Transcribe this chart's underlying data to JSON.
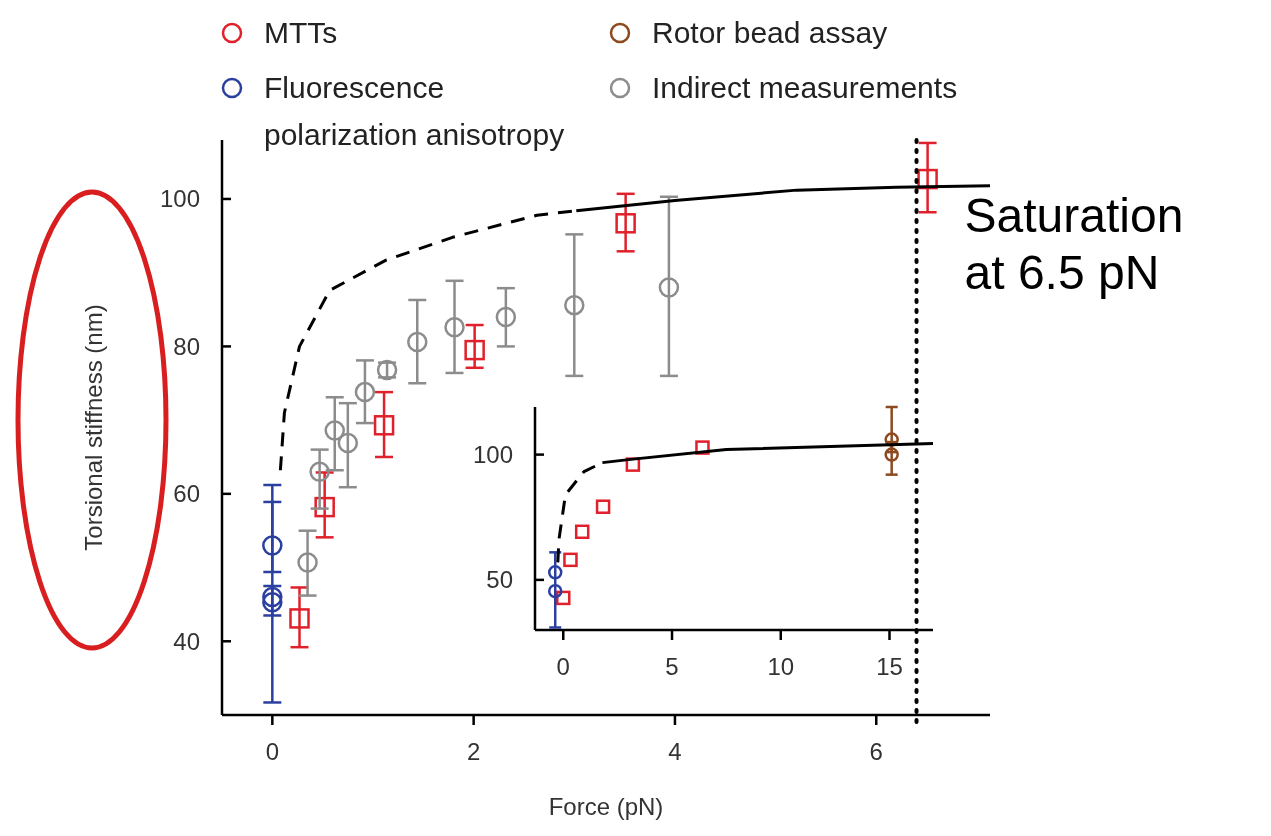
{
  "chart_data": [
    {
      "type": "scatter",
      "xlabel": "Force (pN)",
      "ylabel": "Torsional stiffness (nm)",
      "legend": "top",
      "xlim": [
        -0.5,
        7.13
      ],
      "ylim": [
        30,
        108
      ],
      "xticks": [
        0,
        2,
        4,
        6
      ],
      "yticks": [
        40,
        60,
        80,
        100
      ],
      "series": [
        {
          "name": "MTTs",
          "color": "#e0202a",
          "marker": "square",
          "x": [
            0.27,
            0.52,
            1.11,
            2.01,
            3.51,
            6.51
          ],
          "values": [
            43.1,
            58.2,
            69.3,
            79.5,
            96.7,
            102.7
          ],
          "errors": [
            [
              39.2,
              47.3
            ],
            [
              54.1,
              62.9
            ],
            [
              65.0,
              73.8
            ],
            [
              77.1,
              82.9
            ],
            [
              92.9,
              100.7
            ],
            [
              98.2,
              107.6
            ]
          ]
        },
        {
          "name": "Fluorescence polarization anisotropy",
          "color": "#2a3fa0",
          "marker": "circle",
          "x": [
            0,
            0,
            0
          ],
          "values": [
            53.0,
            46.0,
            45.3
          ],
          "errors": [
            [
              49.4,
              58.9
            ],
            [
              31.7,
              61.2
            ],
            [
              43.5,
              47.5
            ]
          ]
        },
        {
          "name": "Rotor bead assay",
          "color": "#8c4a1e"
        },
        {
          "name": "Indirect measurements",
          "color": "#8c8c8c",
          "marker": "circle",
          "x": [
            0.35,
            0.47,
            0.62,
            0.75,
            0.92,
            1.14,
            1.44,
            1.81,
            2.32,
            3.0,
            3.94
          ],
          "values": [
            50.7,
            63.0,
            68.6,
            66.9,
            73.8,
            76.8,
            80.6,
            82.6,
            84.0,
            85.6,
            88.0
          ],
          "errors": [
            [
              46.2,
              55.0
            ],
            [
              58.0,
              66.0
            ],
            [
              63.2,
              73.1
            ],
            [
              60.9,
              72.3
            ],
            [
              69.6,
              78.1
            ],
            [
              75.8,
              77.8
            ],
            [
              75.0,
              86.3
            ],
            [
              76.4,
              88.9
            ],
            [
              80.0,
              87.9
            ],
            [
              76.0,
              95.2
            ],
            [
              76.0,
              100.3
            ]
          ]
        },
        {
          "type": "line",
          "color": "#000000",
          "marker": "none",
          "line_style": "dashed",
          "x": [
            0.08,
            0.12,
            0.27,
            0.57,
            1.13,
            1.79,
            2.63,
            3.02
          ],
          "values": [
            63.2,
            71.0,
            80.0,
            87.6,
            91.7,
            94.8,
            97.8,
            98.4
          ]
        },
        {
          "type": "line",
          "color": "#000000",
          "marker": "none",
          "line_style": "solid",
          "x": [
            3.02,
            4.0,
            5.21,
            6.2,
            7.13
          ],
          "values": [
            98.4,
            99.8,
            101.2,
            101.6,
            101.8
          ]
        }
      ],
      "ref_lines": [
        {
          "axis": "x",
          "value": 6.4,
          "label": "Saturation at 6.5 pN",
          "color": "#000000",
          "line_style": "dotted"
        }
      ]
    },
    {
      "type": "scatter",
      "xlim": [
        -1.3,
        17
      ],
      "ylim": [
        30,
        119
      ],
      "xticks": [
        0,
        5,
        10,
        15
      ],
      "yticks": [
        50,
        100
      ],
      "series": [
        {
          "color": "#e0202a",
          "marker": "square",
          "x": [
            0,
            0.33,
            0.87,
            1.83,
            3.2,
            6.4
          ],
          "values": [
            42.8,
            58.0,
            69.2,
            79.2,
            96.0,
            102.8
          ]
        },
        {
          "color": "#2a3fa0",
          "marker": "circle",
          "x": [
            -0.37,
            -0.37
          ],
          "values": [
            53.0,
            45.5
          ],
          "errors": [
            null,
            [
              31,
              61
            ]
          ]
        },
        {
          "color": "#8c4a1e",
          "marker": "circle",
          "x": [
            15.1,
            15.1
          ],
          "values": [
            106,
            100
          ],
          "errors": [
            [
              101,
              119
            ],
            [
              92,
              105
            ]
          ]
        },
        {
          "type": "line",
          "color": "#000000",
          "marker": "none",
          "line_style": "dashed",
          "x": [
            -0.25,
            -0.2,
            0.1,
            0.95,
            1.8
          ],
          "values": [
            57,
            66,
            84,
            93.2,
            96.8
          ]
        },
        {
          "type": "line",
          "color": "#000000",
          "marker": "none",
          "line_style": "solid",
          "x": [
            1.8,
            3,
            7.5,
            17
          ],
          "values": [
            96.8,
            98,
            102,
            104.4
          ]
        }
      ]
    }
  ]
}
